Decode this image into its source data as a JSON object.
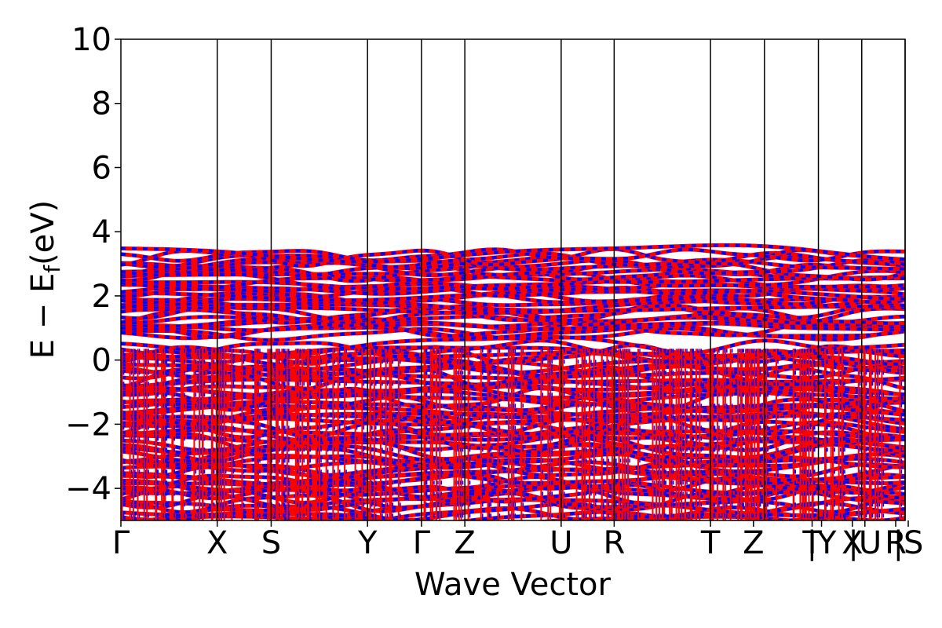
{
  "chart_data": {
    "type": "line",
    "title": "",
    "xlabel": "Wave Vector",
    "ylabel": "E − E_f (eV)",
    "ylabel_parts": {
      "main": "E − E",
      "sub": "f",
      "unit": "(eV)"
    },
    "ylim": [
      -5,
      10
    ],
    "yticks": [
      -4,
      -2,
      0,
      2,
      4,
      6,
      8,
      10
    ],
    "ytick_labels": [
      "−4",
      "−2",
      "0",
      "2",
      "4",
      "6",
      "8",
      "10"
    ],
    "kpath_labels": [
      "Γ",
      "X",
      "S",
      "Y",
      "Γ",
      "Z",
      "U",
      "R",
      "T",
      "Z",
      "|Y",
      "T",
      "|U",
      "X",
      "|S",
      "R"
    ],
    "kpath_positions": [
      0.0,
      1.0,
      1.56,
      2.56,
      3.12,
      3.57,
      4.57,
      5.12,
      6.12,
      6.68,
      7.24,
      7.24,
      7.69,
      7.69,
      8.14,
      8.14
    ],
    "kpath_separators": [
      1.0,
      1.56,
      2.56,
      3.12,
      3.57,
      4.57,
      5.12,
      6.12,
      6.68,
      7.24,
      7.69,
      8.14
    ],
    "x_range": [
      0.0,
      8.14
    ],
    "band_edges": {
      "valence_band_max": 0.45,
      "valence_band_min": -5.0,
      "conduction_band_min": 0.8,
      "conduction_band_max": 3.35
    },
    "series": [
      {
        "color": "#ff0000",
        "style": "solid"
      },
      {
        "color": "#0000ff",
        "style": "dashed"
      }
    ],
    "grid": false,
    "legend": "none"
  }
}
